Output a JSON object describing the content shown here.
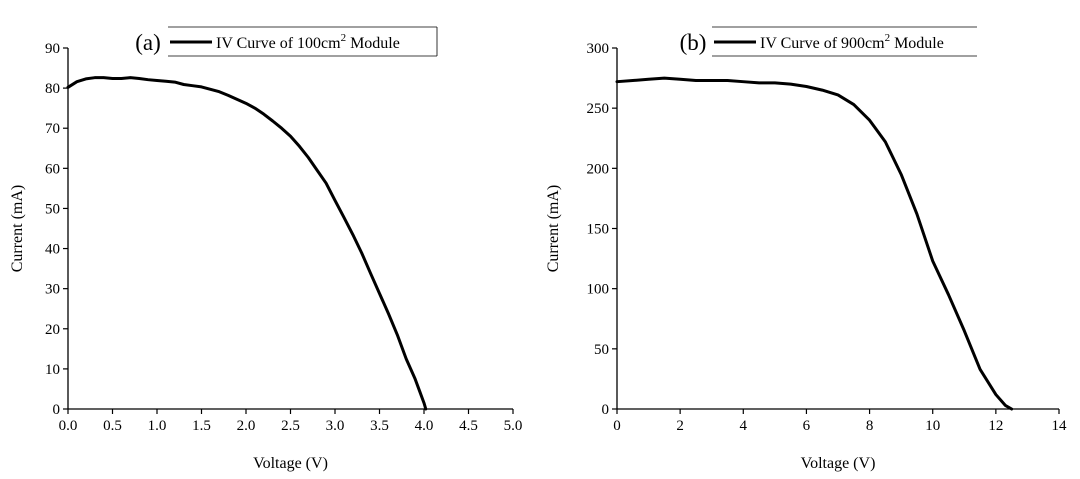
{
  "chart_data": [
    {
      "type": "line",
      "panel_label": "(a)",
      "legend": {
        "text": "IV Curve of 100cm",
        "superscript": "2",
        "suffix": " Module"
      },
      "xlabel": "Voltage (V)",
      "ylabel": "Current (mA)",
      "xlim": [
        0,
        5
      ],
      "ylim": [
        0,
        90
      ],
      "xticks": [
        "0.0",
        "0.5",
        "1.0",
        "1.5",
        "2.0",
        "2.5",
        "3.0",
        "3.5",
        "4.0",
        "4.5",
        "5.0"
      ],
      "yticks": [
        "0",
        "10",
        "20",
        "30",
        "40",
        "50",
        "60",
        "70",
        "80",
        "90"
      ],
      "grid": false,
      "series": [
        {
          "x": [
            0,
            0.1,
            0.2,
            0.3,
            0.4,
            0.5,
            0.6,
            0.7,
            0.8,
            0.9,
            1.0,
            1.1,
            1.2,
            1.3,
            1.4,
            1.5,
            1.6,
            1.7,
            1.8,
            1.9,
            2.0,
            2.1,
            2.2,
            2.3,
            2.4,
            2.5,
            2.6,
            2.7,
            2.8,
            2.9,
            3.0,
            3.1,
            3.2,
            3.3,
            3.4,
            3.5,
            3.6,
            3.7,
            3.8,
            3.9,
            3.95,
            4.0,
            4.02
          ],
          "y": [
            80.2,
            81.6,
            82.3,
            82.6,
            82.6,
            82.4,
            82.4,
            82.6,
            82.4,
            82.1,
            81.9,
            81.7,
            81.5,
            80.9,
            80.6,
            80.3,
            79.7,
            79.1,
            78.2,
            77.2,
            76.2,
            75.0,
            73.5,
            71.8,
            70.0,
            68.0,
            65.5,
            62.7,
            59.5,
            56.3,
            52.0,
            47.8,
            43.5,
            38.9,
            33.8,
            28.8,
            23.8,
            18.5,
            12.5,
            7.5,
            4.5,
            1.5,
            0
          ]
        }
      ]
    },
    {
      "type": "line",
      "panel_label": "(b)",
      "legend": {
        "text": "IV Curve of 900cm",
        "superscript": "2",
        "suffix": " Module"
      },
      "xlabel": "Voltage (V)",
      "ylabel": "Current (mA)",
      "xlim": [
        0,
        14
      ],
      "ylim": [
        0,
        300
      ],
      "xticks": [
        "0",
        "2",
        "4",
        "6",
        "8",
        "10",
        "12",
        "14"
      ],
      "yticks": [
        "0",
        "50",
        "100",
        "150",
        "200",
        "250",
        "300"
      ],
      "grid": false,
      "series": [
        {
          "x": [
            0,
            0.5,
            1.0,
            1.5,
            2.0,
            2.5,
            3.0,
            3.5,
            4.0,
            4.5,
            5.0,
            5.5,
            6.0,
            6.5,
            7.0,
            7.5,
            8.0,
            8.5,
            9.0,
            9.5,
            10.0,
            10.5,
            11.0,
            11.5,
            12.0,
            12.3,
            12.5
          ],
          "y": [
            272,
            273,
            274,
            275,
            274,
            273,
            273,
            273,
            272,
            271,
            271,
            270,
            268,
            265,
            261,
            253,
            240,
            222,
            195,
            162,
            123,
            95,
            65,
            33,
            12,
            3,
            0
          ]
        }
      ]
    }
  ]
}
